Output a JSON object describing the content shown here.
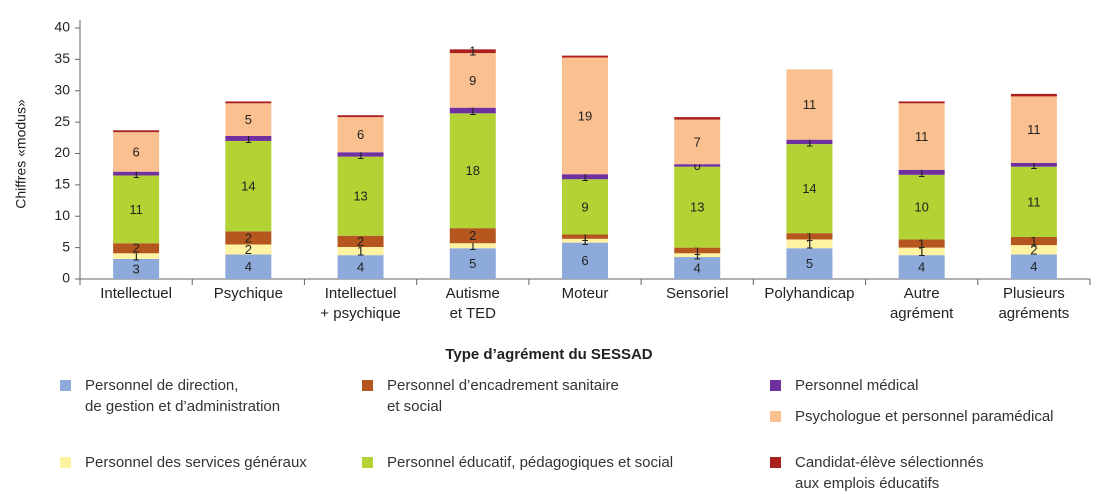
{
  "chart_data": {
    "type": "stacked_bar",
    "x_label": "Type d’agrément du SESSAD",
    "y_label": "Chiffres «modus»",
    "categories": [
      "Intellectuel",
      "Psychique",
      "Intellectuel\n+ psychique",
      "Autisme\net TED",
      "Moteur",
      "Sensoriel",
      "Polyhandicap",
      "Autre\nagrément",
      "Plusieurs\nagréments"
    ],
    "ylim": [
      0,
      40
    ],
    "yticks": [
      0,
      5,
      10,
      15,
      20,
      25,
      30,
      35,
      40
    ],
    "grid": false,
    "series": [
      {
        "name": "Personnel de direction,\nde gestion et d’administration",
        "color": "#8eaadb",
        "values": [
          3.2,
          3.9,
          3.8,
          4.9,
          5.8,
          3.5,
          4.9,
          3.8,
          3.9
        ],
        "value_labels": [
          "3",
          "4",
          "4",
          "5",
          "6",
          "4",
          "5",
          "4",
          "4"
        ]
      },
      {
        "name": "Personnel des services généraux",
        "color": "#fff3a3",
        "values": [
          0.9,
          1.6,
          1.3,
          0.8,
          0.6,
          0.6,
          1.4,
          1.2,
          1.5
        ],
        "value_labels": [
          "1",
          "2",
          "1",
          "1",
          "1",
          "1",
          "1",
          "1",
          "2"
        ]
      },
      {
        "name": "Personnel d’encadrement sanitaire\net social",
        "color": "#b5561f",
        "values": [
          1.6,
          2.1,
          1.8,
          2.4,
          0.7,
          0.9,
          1.0,
          1.3,
          1.3
        ],
        "value_labels": [
          "2",
          "2",
          "2",
          "2",
          "1",
          "1",
          "1",
          "1",
          "1"
        ]
      },
      {
        "name": "Personnel éducatif, pédagogiques et social",
        "color": "#b3d334",
        "values": [
          10.8,
          14.4,
          12.6,
          18.3,
          8.8,
          12.9,
          14.2,
          10.3,
          11.2
        ],
        "value_labels": [
          "11",
          "14",
          "13",
          "18",
          "9",
          "13",
          "14",
          "10",
          "11"
        ]
      },
      {
        "name": "Personnel médical",
        "color": "#7030a0",
        "values": [
          0.6,
          0.8,
          0.7,
          0.9,
          0.8,
          0.4,
          0.7,
          0.8,
          0.6
        ],
        "value_labels": [
          "1",
          "1",
          "1",
          "1",
          "1",
          "0",
          "1",
          "1",
          "1"
        ]
      },
      {
        "name": "Psychologue et personnel paramédical",
        "color": "#fac090",
        "values": [
          6.3,
          5.2,
          5.6,
          8.7,
          18.6,
          7.1,
          11.2,
          10.6,
          10.6
        ],
        "value_labels": [
          "6",
          "5",
          "6",
          "9",
          "19",
          "7",
          "11",
          "11",
          "11"
        ]
      },
      {
        "name": "Candidat-élève sélectionnés\naux emplois éducatifs",
        "color": "#a9201e",
        "values": [
          0.3,
          0.3,
          0.3,
          0.6,
          0.3,
          0.4,
          0,
          0.3,
          0.4
        ],
        "value_labels": [
          null,
          null,
          null,
          "1",
          null,
          null,
          null,
          null,
          null
        ]
      }
    ]
  }
}
